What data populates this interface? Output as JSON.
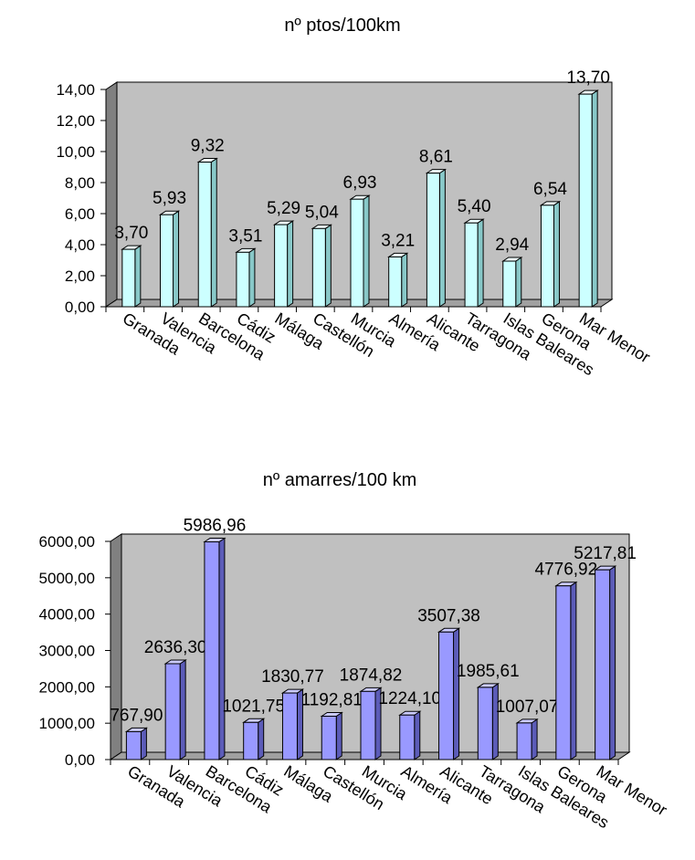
{
  "chart_data": [
    {
      "type": "bar",
      "title": "nº ptos/100km",
      "categories": [
        "Granada",
        "Valencia",
        "Barcelona",
        "Cádiz",
        "Málaga",
        "Castellón",
        "Murcia",
        "Almería",
        "Alicante",
        "Tarragona",
        "Islas Baleares",
        "Gerona",
        "Mar Menor"
      ],
      "values": [
        3.7,
        5.93,
        9.32,
        3.51,
        5.29,
        5.04,
        6.93,
        3.21,
        8.61,
        5.4,
        2.94,
        6.54,
        13.7
      ],
      "value_labels": [
        "3,70",
        "5,93",
        "9,32",
        "3,51",
        "5,29",
        "5,04",
        "6,93",
        "3,21",
        "8,61",
        "5,40",
        "2,94",
        "6,54",
        "13,70"
      ],
      "ylim": [
        0,
        14
      ],
      "yticks": [
        "0,00",
        "2,00",
        "4,00",
        "6,00",
        "8,00",
        "10,00",
        "12,00",
        "14,00"
      ],
      "bar_color": "#ccffff",
      "bar_top_color": "#f0ffff",
      "bar_side_color": "#88c8c8",
      "plot_back_color": "#c0c0c0",
      "legend": "none",
      "grid": false
    },
    {
      "type": "bar",
      "title": "nº amarres/100 km",
      "categories": [
        "Granada",
        "Valencia",
        "Barcelona",
        "Cádiz",
        "Málaga",
        "Castellón",
        "Murcia",
        "Almería",
        "Alicante",
        "Tarragona",
        "Islas Baleares",
        "Gerona",
        "Mar Menor"
      ],
      "values": [
        767.9,
        2636.3,
        5986.96,
        1021.75,
        1830.77,
        1192.81,
        1874.82,
        1224.1,
        3507.38,
        1985.61,
        1007.07,
        4776.92,
        5217.81
      ],
      "value_labels": [
        "767,90",
        "2636,30",
        "5986,96",
        "1021,75",
        "1830,77",
        "1192,81",
        "1874,82",
        "1224,10",
        "3507,38",
        "1985,61",
        "1007,07",
        "4776,92",
        "5217,81"
      ],
      "ylim": [
        0,
        6000
      ],
      "yticks": [
        "0,00",
        "1000,00",
        "2000,00",
        "3000,00",
        "4000,00",
        "5000,00",
        "6000,00"
      ],
      "bar_color": "#9999ff",
      "bar_top_color": "#ccccff",
      "bar_side_color": "#5c5cb8",
      "plot_back_color": "#c0c0c0",
      "legend": "none",
      "grid": false
    }
  ]
}
